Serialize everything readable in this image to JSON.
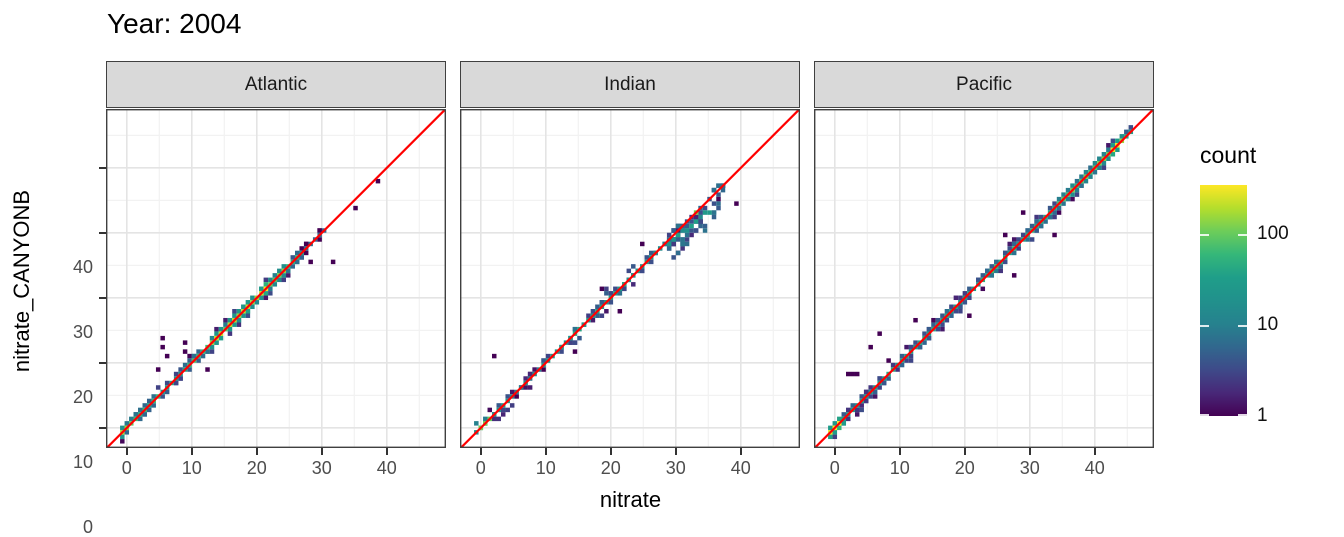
{
  "title": "Year: 2004",
  "axes": {
    "x_title": "nitrate",
    "y_title": "nitrate_CANYONB",
    "x_ticks": [
      0,
      10,
      20,
      30,
      40
    ],
    "y_ticks": [
      40,
      30,
      20,
      10,
      0
    ]
  },
  "facets": [
    {
      "label": "Atlantic"
    },
    {
      "label": "Indian"
    },
    {
      "label": "Pacific"
    }
  ],
  "legend": {
    "title": "count",
    "ticks": [
      {
        "label": "100",
        "value": 100
      },
      {
        "label": "10",
        "value": 10
      },
      {
        "label": "1",
        "value": 1
      }
    ],
    "max_count": 350,
    "viridis": [
      "#440154",
      "#482878",
      "#3e4a89",
      "#31688e",
      "#26828e",
      "#21918c",
      "#1f9e89",
      "#35b779",
      "#6dcd59",
      "#b4de2c",
      "#fde725"
    ]
  },
  "colors": {
    "diagonal_line": "#ff0000",
    "strip_bg": "#d9d9d9",
    "strip_border": "#404040",
    "panel_border": "#404040",
    "grid_major": "#e4e4e4",
    "grid_minor": "#f2f2f2",
    "axis_text": "#4d4d4d",
    "tick_mark": "#333333",
    "text": "#000000"
  },
  "chart_data": {
    "type": "heatmap",
    "subtype": "geom_bin2d facet comparison of nitrate vs nitrate_CANYONB with y=x reference line",
    "title": "Year: 2004",
    "xlabel": "nitrate",
    "ylabel": "nitrate_CANYONB",
    "xlim": [
      -3.2,
      49.1
    ],
    "ylim": [
      -3.1,
      49.05
    ],
    "grid": {
      "major": [
        0,
        10,
        20,
        30,
        40
      ],
      "minor": [
        5,
        15,
        25,
        35,
        45
      ]
    },
    "identity_line": {
      "slope": 1,
      "intercept": 0,
      "color": "#ff0000"
    },
    "count_scale": {
      "type": "log10",
      "min": 1,
      "max": 350
    },
    "bin_units": 0.69,
    "seed": 20041,
    "panels": [
      {
        "name": "Atlantic",
        "band": {
          "start": -0.7,
          "end": 30.6,
          "segments": [
            [
              -0.7,
              1.5,
              120
            ],
            [
              1.5,
              5,
              45
            ],
            [
              5,
              9,
              28
            ],
            [
              9,
              13,
              60
            ],
            [
              13,
              17,
              150
            ],
            [
              17,
              22,
              260
            ],
            [
              22,
              24.5,
              120
            ],
            [
              24.5,
              27,
              40
            ],
            [
              27,
              30.6,
              6
            ]
          ]
        },
        "hotspots": [
          [
            0.2,
            0.2,
            150
          ]
        ],
        "outliers": [
          [
            5.8,
            13.8
          ],
          [
            5.8,
            12.3
          ],
          [
            6.2,
            10.8
          ],
          [
            8.7,
            11.7
          ],
          [
            9.3,
            12.9
          ],
          [
            4.7,
            9.2
          ],
          [
            12.3,
            8.9
          ],
          [
            28.5,
            25.3
          ],
          [
            31.4,
            25.8
          ],
          [
            35.0,
            33.8
          ],
          [
            38.9,
            37.7
          ]
        ]
      },
      {
        "name": "Indian",
        "band": {
          "start": -0.3,
          "end": 35.2,
          "bend_from": 28,
          "bend_dy": -1.6,
          "segments": [
            [
              -0.3,
              1.2,
              90
            ],
            [
              1.2,
              4,
              20
            ],
            [
              4,
              9,
              14
            ],
            [
              9,
              14,
              28
            ],
            [
              14,
              18,
              35
            ],
            [
              18,
              22,
              30
            ],
            [
              22,
              26,
              25
            ],
            [
              26,
              29,
              16
            ],
            [
              29,
              33,
              30
            ],
            [
              33,
              35.2,
              22
            ]
          ]
        },
        "blob": {
          "x0": 29,
          "x1": 37.6,
          "dy0": -3.8,
          "dy1": 0.8,
          "n": 60,
          "cmax": 7
        },
        "hotspots": [
          [
            0.3,
            0.3,
            90
          ],
          [
            33.2,
            33.4,
            120
          ]
        ],
        "outliers": [
          [
            2.0,
            11.2
          ],
          [
            39.4,
            34.8
          ],
          [
            14.8,
            11.5
          ],
          [
            21.5,
            17.8
          ],
          [
            24.8,
            28.6
          ],
          [
            18.3,
            21.2
          ]
        ]
      },
      {
        "name": "Pacific",
        "band": {
          "start": -0.7,
          "end": 46.0,
          "segments": [
            [
              -0.7,
              1.2,
              300
            ],
            [
              1.2,
              4,
              30
            ],
            [
              4,
              8,
              22
            ],
            [
              8,
              12,
              35
            ],
            [
              12,
              16,
              30
            ],
            [
              16,
              20,
              45
            ],
            [
              20,
              24,
              40
            ],
            [
              24,
              28,
              50
            ],
            [
              28,
              32,
              45
            ],
            [
              32,
              36,
              60
            ],
            [
              36,
              40,
              80
            ],
            [
              40,
              42.5,
              140
            ],
            [
              42.5,
              44.5,
              220
            ],
            [
              44.5,
              46,
              40
            ]
          ]
        },
        "hotspots": [
          [
            -0.3,
            0.2,
            350
          ],
          [
            43.3,
            43.5,
            330
          ]
        ],
        "outliers": [
          [
            6.8,
            14.6
          ],
          [
            5.5,
            12.5
          ],
          [
            8.2,
            10.2
          ],
          [
            2.0,
            8.6
          ],
          [
            2.7,
            8.6
          ],
          [
            3.4,
            8.6
          ],
          [
            29.2,
            32.8
          ],
          [
            21.0,
            17.5
          ],
          [
            27.5,
            23.2
          ],
          [
            12.5,
            16.3
          ],
          [
            33.5,
            29.5
          ],
          [
            26.2,
            30.0
          ]
        ]
      }
    ]
  }
}
